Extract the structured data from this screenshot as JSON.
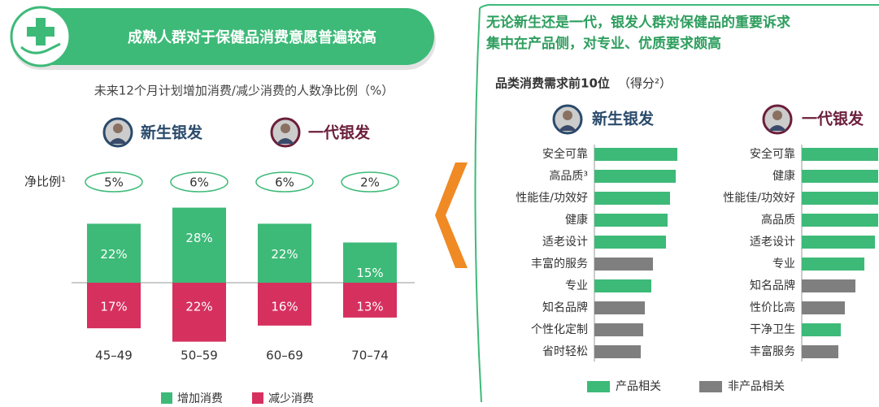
{
  "chart_data": [
    {
      "type": "diverging_bar",
      "title": "成熟人群对于保健品消费意愿普遍较高",
      "subtitle": "未来12个月计划增加消费/减少消费的人数净比例（%）",
      "groups": [
        "新生银发",
        "一代银发"
      ],
      "net_label": "净比例¹",
      "net_values": [
        5,
        6,
        6,
        2
      ],
      "net_value_labels": [
        "5%",
        "6%",
        "6%",
        "2%"
      ],
      "categories": [
        "45–49",
        "50–59",
        "60–69",
        "70–74"
      ],
      "series": [
        {
          "name": "增加消费",
          "color": "#3dba78",
          "values": [
            22,
            28,
            22,
            15
          ],
          "value_labels": [
            "22%",
            "28%",
            "22%",
            "15%"
          ]
        },
        {
          "name": "减少消费",
          "color": "#d6305f",
          "values": [
            17,
            22,
            16,
            13
          ],
          "value_labels": [
            "17%",
            "22%",
            "16%",
            "13%"
          ]
        }
      ]
    },
    {
      "type": "hbar",
      "title": "新生银发",
      "categories": [
        "安全可靠",
        "高品质³",
        "性能佳/功效好",
        "健康",
        "适老设计",
        "丰富的服务",
        "专业",
        "知名品牌",
        "个性化定制",
        "省时轻松"
      ],
      "values": [
        102,
        100,
        93,
        90,
        88,
        72,
        70,
        62,
        60,
        57
      ],
      "colors": [
        "#3dba78",
        "#3dba78",
        "#3dba78",
        "#3dba78",
        "#3dba78",
        "#7f7f7f",
        "#3dba78",
        "#7f7f7f",
        "#7f7f7f",
        "#7f7f7f"
      ]
    },
    {
      "type": "hbar",
      "title": "一代银发",
      "categories": [
        "安全可靠",
        "健康",
        "性能佳/功效好",
        "高品质",
        "适老设计",
        "专业",
        "知名品牌",
        "性价比高",
        "干净卫生",
        "丰富服务"
      ],
      "values": [
        100,
        100,
        100,
        98,
        90,
        77,
        66,
        53,
        48,
        45
      ],
      "colors": [
        "#3dba78",
        "#3dba78",
        "#3dba78",
        "#3dba78",
        "#3dba78",
        "#3dba78",
        "#7f7f7f",
        "#7f7f7f",
        "#3dba78",
        "#7f7f7f"
      ]
    }
  ],
  "right_panel": {
    "headline": [
      "无论新生还是一代，银发人群对保健品的重要诉求",
      "集中在产品侧，对专业、优质要求颇高"
    ],
    "subtitle": "品类消费需求前10位",
    "subtitle_note": "（得分²）"
  },
  "legend": [
    {
      "name": "产品相关",
      "color": "#3dba78"
    },
    {
      "name": "非产品相关",
      "color": "#7f7f7f"
    }
  ]
}
